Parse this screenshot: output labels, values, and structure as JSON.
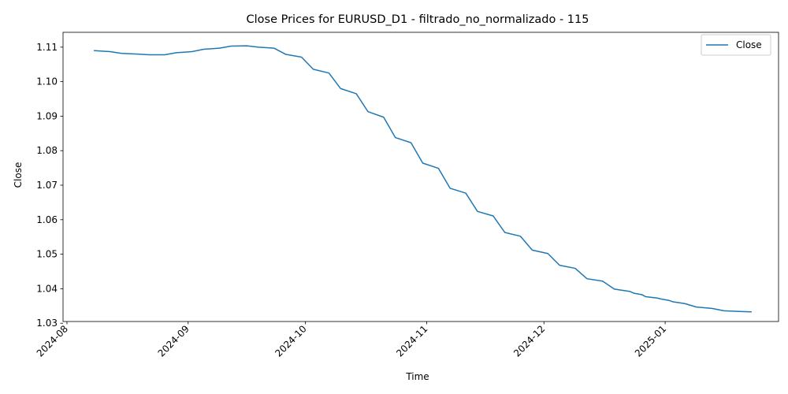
{
  "chart_data": {
    "type": "line",
    "title": "Close Prices for EURUSD_D1 - filtrado_no_normalizado - 115",
    "xlabel": "Time",
    "ylabel": "Close",
    "x_ticks": [
      "2024-08",
      "2024-09",
      "2024-10",
      "2024-11",
      "2024-12",
      "2025-01"
    ],
    "x_tick_dates": [
      "2024-08-01",
      "2024-09-01",
      "2024-10-01",
      "2024-11-01",
      "2024-12-01",
      "2025-01-01"
    ],
    "y_ticks": [
      "1.03",
      "1.04",
      "1.05",
      "1.06",
      "1.07",
      "1.08",
      "1.09",
      "1.10",
      "1.11"
    ],
    "ylim": [
      1.0305,
      1.1143
    ],
    "xlim": [
      "2024-07-31",
      "2025-01-30"
    ],
    "grid": false,
    "legend_position": "upper right",
    "line_color": "#1f77b4",
    "series": [
      {
        "name": "Close",
        "points": [
          [
            "2024-08-08",
            1.109
          ],
          [
            "2024-08-12",
            1.1087
          ],
          [
            "2024-08-15",
            1.1082
          ],
          [
            "2024-08-19",
            1.108
          ],
          [
            "2024-08-22",
            1.1078
          ],
          [
            "2024-08-26",
            1.1078
          ],
          [
            "2024-08-29",
            1.1084
          ],
          [
            "2024-09-02",
            1.1087
          ],
          [
            "2024-09-05",
            1.1094
          ],
          [
            "2024-09-09",
            1.1097
          ],
          [
            "2024-09-12",
            1.1103
          ],
          [
            "2024-09-16",
            1.1104
          ],
          [
            "2024-09-19",
            1.11
          ],
          [
            "2024-09-23",
            1.1097
          ],
          [
            "2024-09-26",
            1.1079
          ],
          [
            "2024-09-30",
            1.1071
          ],
          [
            "2024-10-03",
            1.1036
          ],
          [
            "2024-10-07",
            1.1025
          ],
          [
            "2024-10-10",
            1.098
          ],
          [
            "2024-10-14",
            1.0965
          ],
          [
            "2024-10-17",
            1.0913
          ],
          [
            "2024-10-21",
            1.0897
          ],
          [
            "2024-10-24",
            1.0838
          ],
          [
            "2024-10-28",
            1.0823
          ],
          [
            "2024-10-31",
            1.0764
          ],
          [
            "2024-11-04",
            1.0749
          ],
          [
            "2024-11-07",
            1.0691
          ],
          [
            "2024-11-11",
            1.0677
          ],
          [
            "2024-11-14",
            1.0624
          ],
          [
            "2024-11-18",
            1.0611
          ],
          [
            "2024-11-21",
            1.0563
          ],
          [
            "2024-11-25",
            1.0552
          ],
          [
            "2024-11-28",
            1.0512
          ],
          [
            "2024-12-02",
            1.0502
          ],
          [
            "2024-12-05",
            1.0468
          ],
          [
            "2024-12-09",
            1.0459
          ],
          [
            "2024-12-12",
            1.0429
          ],
          [
            "2024-12-16",
            1.0422
          ],
          [
            "2024-12-19",
            1.0399
          ],
          [
            "2024-12-23",
            1.0392
          ],
          [
            "2024-12-24",
            1.0387
          ],
          [
            "2024-12-26",
            1.0383
          ],
          [
            "2024-12-27",
            1.0377
          ],
          [
            "2024-12-30",
            1.0373
          ],
          [
            "2024-12-31",
            1.037
          ],
          [
            "2025-01-02",
            1.0366
          ],
          [
            "2025-01-03",
            1.0362
          ],
          [
            "2025-01-06",
            1.0357
          ],
          [
            "2025-01-09",
            1.0347
          ],
          [
            "2025-01-13",
            1.0343
          ],
          [
            "2025-01-16",
            1.0336
          ],
          [
            "2025-01-20",
            1.0334
          ],
          [
            "2025-01-23",
            1.0333
          ]
        ]
      }
    ]
  }
}
